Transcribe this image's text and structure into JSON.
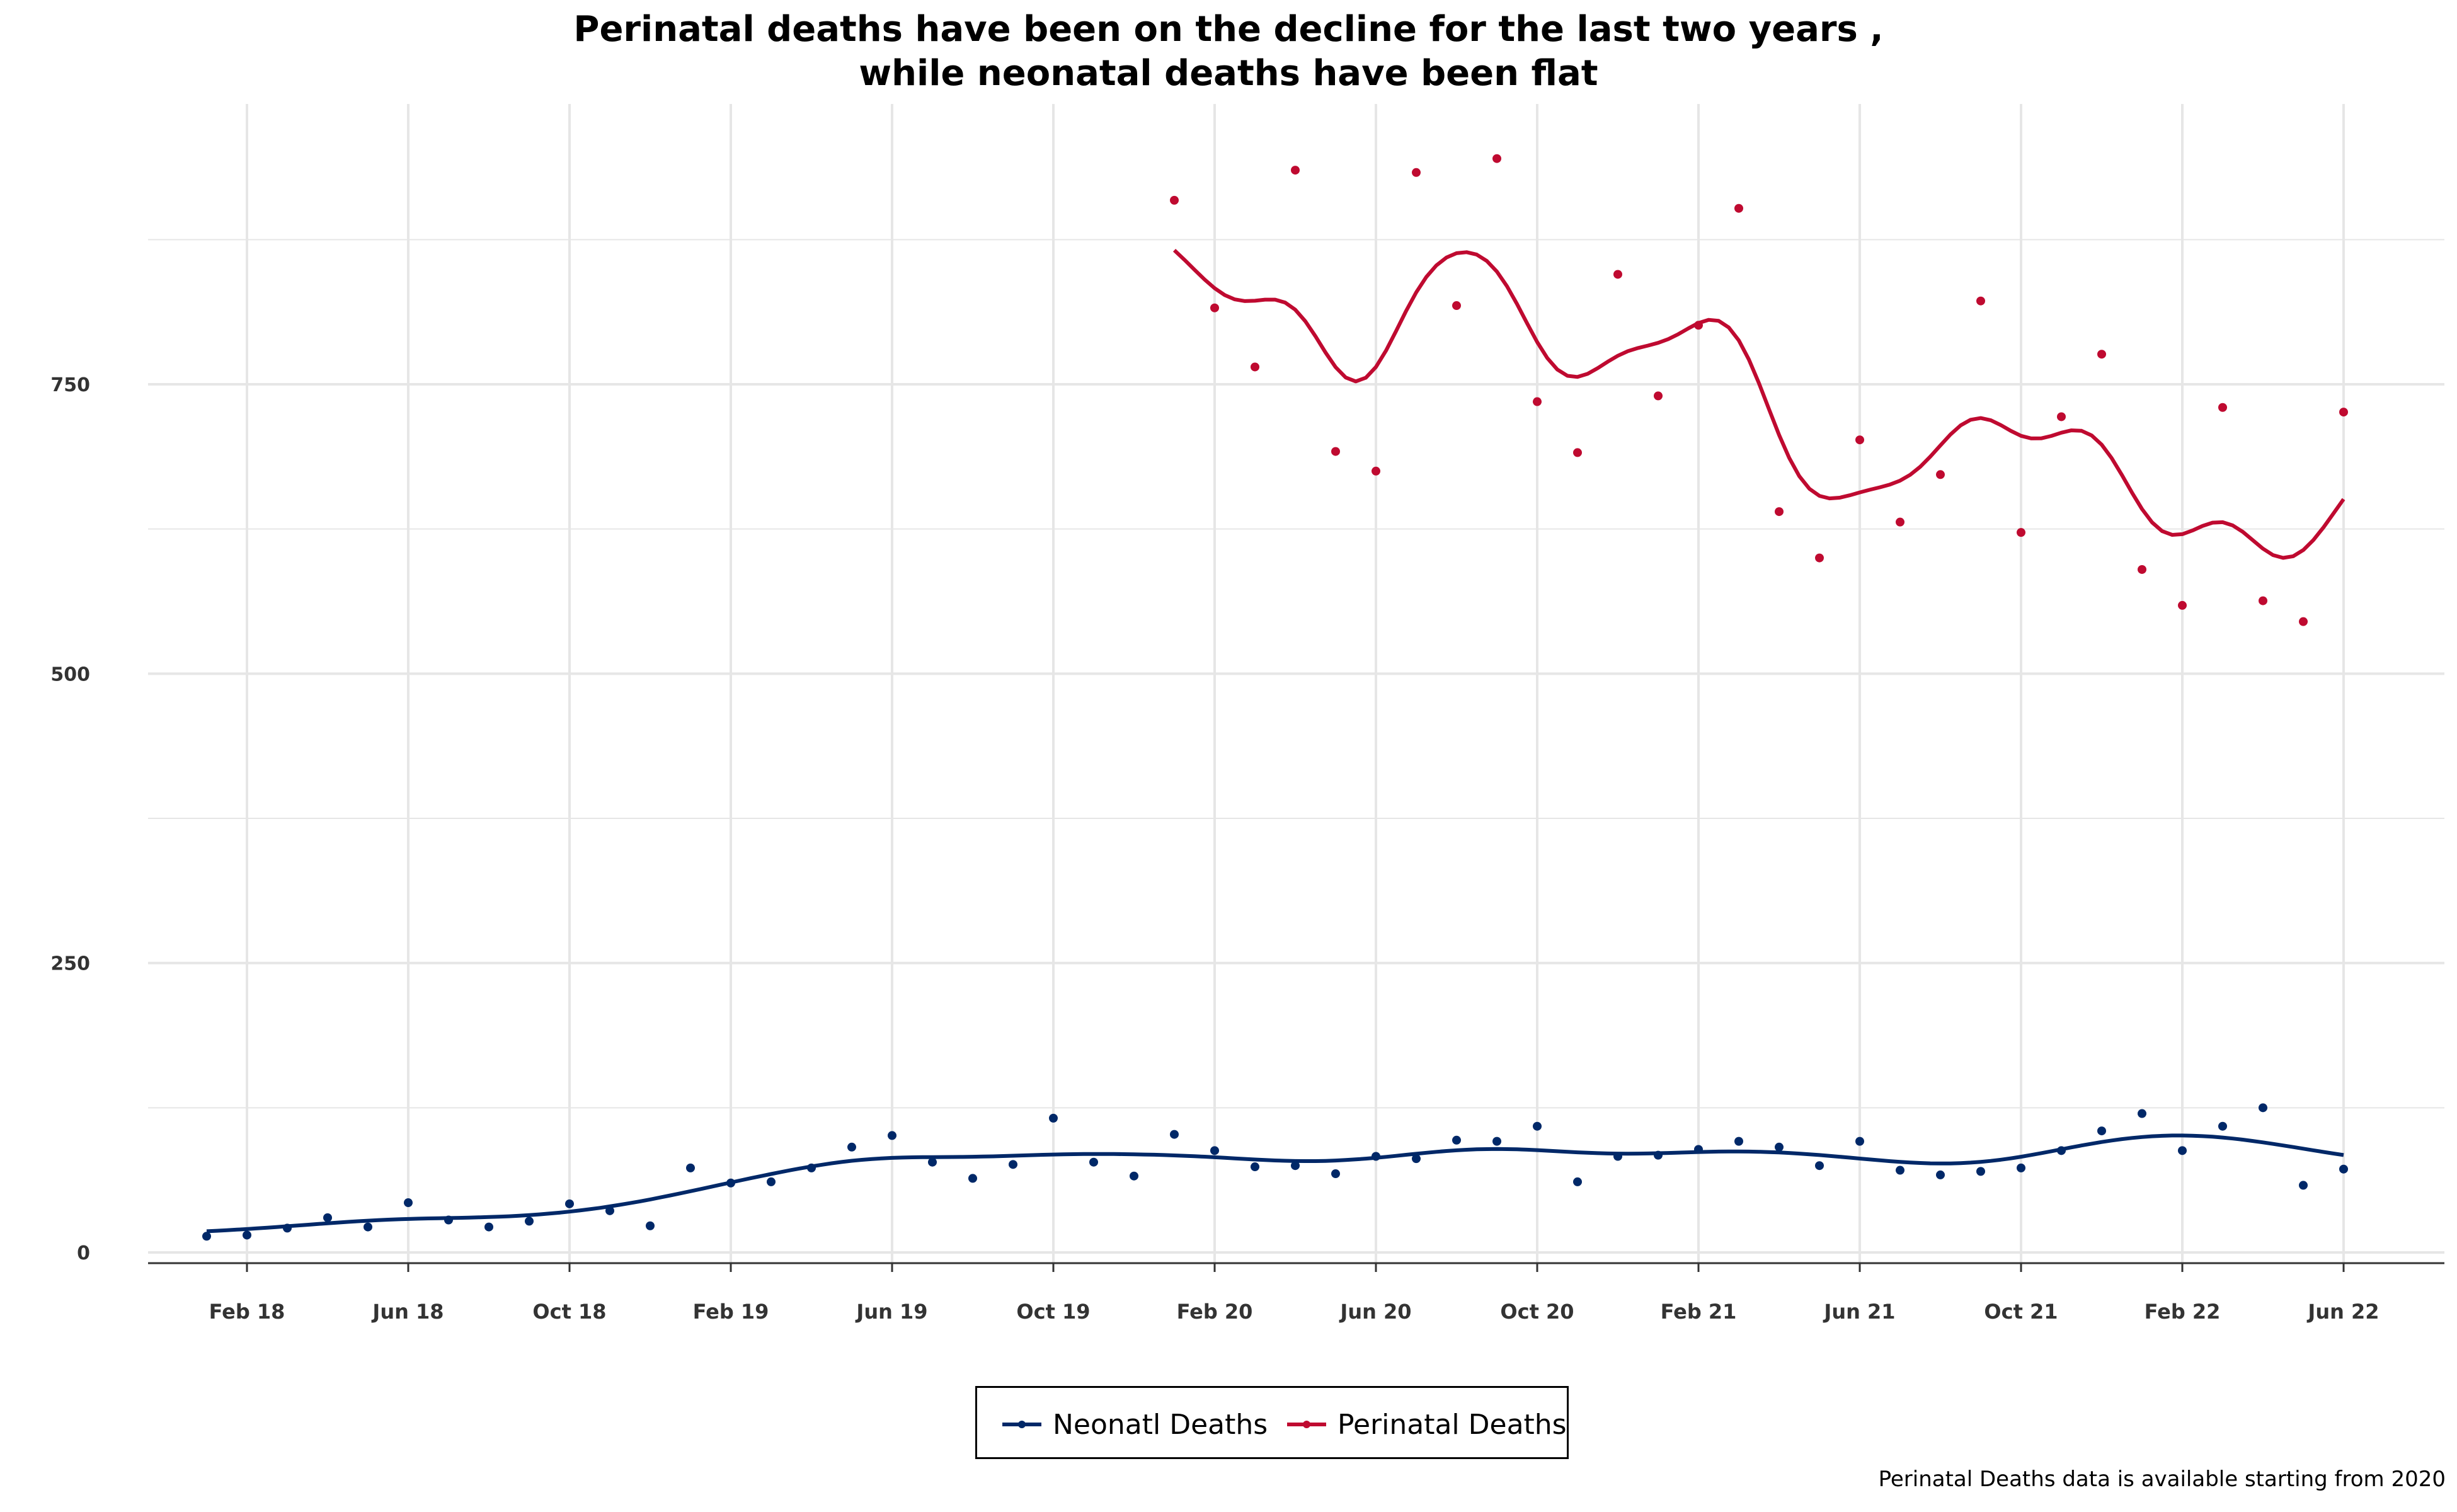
{
  "colors": {
    "neonatal": "#002868",
    "perinatal": "#BF0A30",
    "grid": "#e6e6e6"
  },
  "chart_data": {
    "type": "scatter",
    "title_line1": "Perinatal deaths have been on the decline for the last two years ,",
    "title_line2": "while neonatal deaths have been flat",
    "caption": "Perinatal Deaths data is available starting from 2020",
    "ylim": [
      0,
      980
    ],
    "y_ticks": [
      0,
      250,
      500,
      750
    ],
    "x_ticks": [
      "Feb 18",
      "Jun 18",
      "Oct 18",
      "Feb 19",
      "Jun 19",
      "Oct 19",
      "Feb 20",
      "Jun 20",
      "Oct 20",
      "Feb 21",
      "Jun 21",
      "Oct 21",
      "Feb 22",
      "Jun 22"
    ],
    "x_range": [
      "Jan 18",
      "Jun 22"
    ],
    "grid": true,
    "legend_position": "bottom",
    "series": [
      {
        "name": "Neonatl Deaths",
        "fit": "smoothed",
        "points": [
          [
            "Jan 18",
            14
          ],
          [
            "Feb 18",
            15
          ],
          [
            "Mar 18",
            21
          ],
          [
            "Apr 18",
            30
          ],
          [
            "May 18",
            22
          ],
          [
            "Jun 18",
            43
          ],
          [
            "Jul 18",
            28
          ],
          [
            "Aug 18",
            22
          ],
          [
            "Sep 18",
            27
          ],
          [
            "Oct 18",
            42
          ],
          [
            "Nov 18",
            36
          ],
          [
            "Dec 18",
            23
          ],
          [
            "Jan 19",
            73
          ],
          [
            "Feb 19",
            60
          ],
          [
            "Mar 19",
            61
          ],
          [
            "Apr 19",
            73
          ],
          [
            "May 19",
            91
          ],
          [
            "Jun 19",
            101
          ],
          [
            "Jul 19",
            78
          ],
          [
            "Aug 19",
            64
          ],
          [
            "Sep 19",
            76
          ],
          [
            "Oct 19",
            116
          ],
          [
            "Nov 19",
            78
          ],
          [
            "Dec 19",
            66
          ],
          [
            "Jan 20",
            102
          ],
          [
            "Feb 20",
            88
          ],
          [
            "Mar 20",
            74
          ],
          [
            "Apr 20",
            75
          ],
          [
            "May 20",
            68
          ],
          [
            "Jun 20",
            83
          ],
          [
            "Jul 20",
            81
          ],
          [
            "Aug 20",
            97
          ],
          [
            "Sep 20",
            96
          ],
          [
            "Oct 20",
            109
          ],
          [
            "Nov 20",
            61
          ],
          [
            "Dec 20",
            83
          ],
          [
            "Jan 21",
            84
          ],
          [
            "Feb 21",
            89
          ],
          [
            "Mar 21",
            96
          ],
          [
            "Apr 21",
            91
          ],
          [
            "May 21",
            75
          ],
          [
            "Jun 21",
            96
          ],
          [
            "Jul 21",
            71
          ],
          [
            "Aug 21",
            67
          ],
          [
            "Sep 21",
            70
          ],
          [
            "Oct 21",
            73
          ],
          [
            "Nov 21",
            88
          ],
          [
            "Dec 21",
            105
          ],
          [
            "Jan 22",
            120
          ],
          [
            "Feb 22",
            88
          ],
          [
            "Mar 22",
            109
          ],
          [
            "Apr 22",
            125
          ],
          [
            "May 22",
            58
          ],
          [
            "Jun 22",
            72
          ]
        ]
      },
      {
        "name": "Perinatal Deaths",
        "fit": "smoothed",
        "points": [
          [
            "Jan 20",
            909
          ],
          [
            "Feb 20",
            816
          ],
          [
            "Mar 20",
            765
          ],
          [
            "Apr 20",
            935
          ],
          [
            "May 20",
            692
          ],
          [
            "Jun 20",
            675
          ],
          [
            "Jul 20",
            933
          ],
          [
            "Aug 20",
            818
          ],
          [
            "Sep 20",
            945
          ],
          [
            "Oct 20",
            735
          ],
          [
            "Nov 20",
            691
          ],
          [
            "Dec 20",
            845
          ],
          [
            "Jan 21",
            740
          ],
          [
            "Feb 21",
            801
          ],
          [
            "Mar 21",
            902
          ],
          [
            "Apr 21",
            640
          ],
          [
            "May 21",
            600
          ],
          [
            "Jun 21",
            702
          ],
          [
            "Jul 21",
            631
          ],
          [
            "Aug 21",
            672
          ],
          [
            "Sep 21",
            822
          ],
          [
            "Oct 21",
            622
          ],
          [
            "Nov 21",
            722
          ],
          [
            "Dec 21",
            776
          ],
          [
            "Jan 22",
            590
          ],
          [
            "Feb 22",
            559
          ],
          [
            "Mar 22",
            730
          ],
          [
            "Apr 22",
            563
          ],
          [
            "May 22",
            545
          ],
          [
            "Jun 22",
            726
          ]
        ]
      }
    ]
  }
}
